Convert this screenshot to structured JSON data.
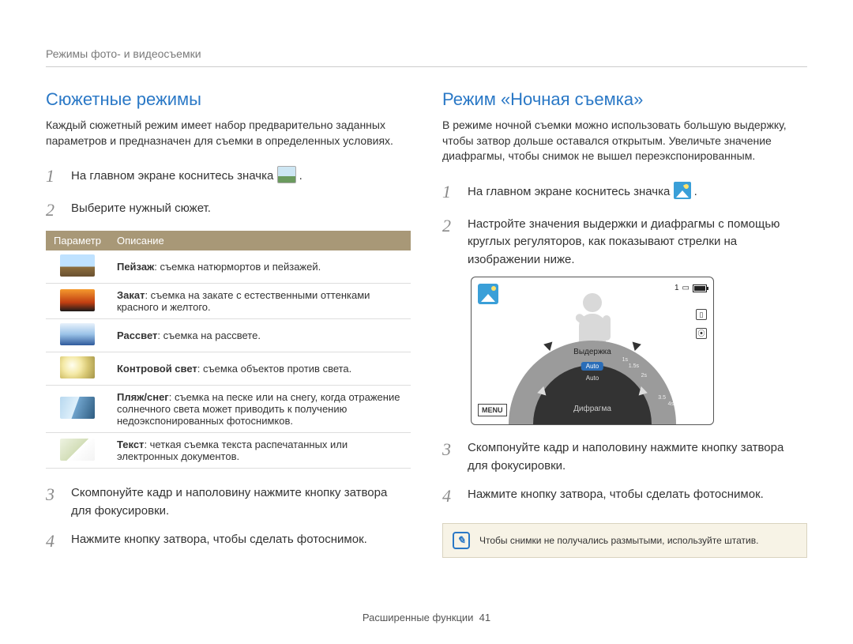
{
  "breadcrumb": "Режимы фото- и видеосъемки",
  "left": {
    "title": "Сюжетные режимы",
    "intro": "Каждый сюжетный режим имеет набор предварительно заданных параметров и предназначен для съемки в определенных условиях.",
    "steps": {
      "1": "На главном экране коснитесь значка ",
      "2": "Выберите нужный сюжет.",
      "3": "Скомпонуйте кадр и наполовину нажмите кнопку затвора для фокусировки.",
      "4": "Нажмите кнопку затвора, чтобы сделать фотоснимок."
    },
    "table": {
      "head_param": "Параметр",
      "head_desc": "Описание",
      "rows": [
        {
          "thumb_css": "background:linear-gradient(#bfe2ff 0%,#bfe2ff 55%,#8e6f3e 55%,#6a5130 100%);",
          "name": "Пейзаж",
          "desc": ": съемка натюрмортов и пейзажей."
        },
        {
          "thumb_css": "background:linear-gradient(#f59a2e 0%,#c23f12 60%,#1a1a1a 100%);",
          "name": "Закат",
          "desc": ": съемка на закате с естественными оттенками красного и желтого."
        },
        {
          "thumb_css": "background:linear-gradient(#e8f1fb 0%,#9bc3e8 50%,#2f5a9c 100%);",
          "name": "Рассвет",
          "desc": ": съемка на рассвете."
        },
        {
          "thumb_css": "background:radial-gradient(circle at 35% 40%, #fffef0 0%, #f4e9a6 35%, #d8c874 60%, #a49448 100%);",
          "name": "Контровой свет",
          "desc": ": съемка объектов против света."
        },
        {
          "thumb_css": "background:linear-gradient(110deg,#b8d8ef 0%,#dff0fb 45%,#6fa3cc 46%,#2e5c80 100%);",
          "name": "Пляж/снег",
          "desc": ": съемка на песке или на снегу, когда отражение солнечного света может приводить к получению недоэкспонированных фотоснимков."
        },
        {
          "thumb_css": "background:linear-gradient(135deg,#eef3e2 0%,#d3deb8 50%,#ffffff 50%,#f3f3f3 100%);",
          "name": "Текст",
          "desc": ": четкая съемка текста распечатанных или электронных документов."
        }
      ]
    }
  },
  "right": {
    "title": "Режим «Ночная съемка»",
    "intro": "В режиме ночной съемки можно использовать большую выдержку, чтобы затвор дольше оставался открытым. Увеличьте значение диафрагмы, чтобы снимок не вышел переэкспонированным.",
    "steps": {
      "1": "На главном экране коснитесь значка ",
      "2": "Настройте значения выдержки и диафрагмы с помощью круглых регуляторов, как показывают стрелки на изображении ниже.",
      "3": "Скомпонуйте кадр и наполовину нажмите кнопку затвора для фокусировки.",
      "4": "Нажмите кнопку затвора, чтобы сделать фотоснимок."
    },
    "camera": {
      "count": "1",
      "shutter_label": "Выдержка",
      "aperture_label": "Дифрагма",
      "auto": "Auto",
      "auto2": "Auto",
      "menu": "MENU",
      "side_icons": [
        "▯",
        "⦿"
      ]
    },
    "note": "Чтобы снимки не получались размытыми, используйте штатив."
  },
  "footer": {
    "section": "Расширенные функции",
    "page": "41"
  },
  "colors": {
    "heading": "#2a78c6",
    "step_num": "#8a8a8a",
    "table_header_bg": "#a89877",
    "note_bg": "#f7f3e6",
    "note_border": "#d9d3bf"
  }
}
